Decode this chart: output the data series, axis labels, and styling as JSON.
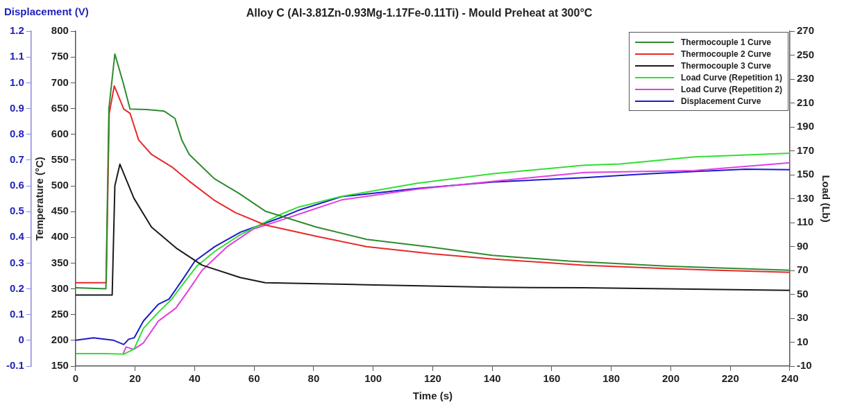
{
  "chart_data": {
    "type": "line",
    "title": "Alloy C (Al-3.81Zn-0.93Mg-1.17Fe-0.11Ti) - Mould Preheat at 300°C",
    "xlabel": "Time (s)",
    "ylabel": "Temperature (°C)",
    "y2label": "Load (Lb)",
    "y3label": "Displacement (V)",
    "xlim": [
      0,
      240
    ],
    "xticks": [
      0,
      20,
      40,
      60,
      80,
      100,
      120,
      140,
      160,
      180,
      200,
      220,
      240
    ],
    "ylim": [
      150,
      800
    ],
    "yticks": [
      150,
      200,
      250,
      300,
      350,
      400,
      450,
      500,
      550,
      600,
      650,
      700,
      750,
      800
    ],
    "y2lim": [
      -10,
      270
    ],
    "y2ticks": [
      -10,
      10,
      30,
      50,
      70,
      90,
      110,
      130,
      150,
      170,
      190,
      210,
      230,
      250,
      270
    ],
    "y3lim": [
      -0.1,
      1.2
    ],
    "y3ticks": [
      -0.1,
      0,
      0.1,
      0.2,
      0.3,
      0.4,
      0.5,
      0.6,
      0.7,
      0.8,
      0.9,
      {
        "value": 1,
        "label": "1.0"
      },
      1.1,
      1.2
    ],
    "grid": false,
    "legend": "top right",
    "marker": "none",
    "line_style": "solid",
    "series": [
      {
        "name": "Thermocouple 1 Curve",
        "color": "#2e8b2e",
        "x": [
          0,
          10.2,
          11.2,
          13.2,
          16,
          18.3,
          24,
          29.8,
          33.4,
          35.7,
          38.2,
          46.6,
          55,
          63.7,
          80.9,
          97.8,
          119.7,
          140,
          165.6,
          199.5,
          240
        ],
        "values": [
          302,
          300,
          650,
          756,
          700,
          649,
          648,
          645,
          631,
          589,
          561,
          514,
          485,
          451,
          420,
          396,
          381,
          365,
          354,
          344,
          336
        ]
      },
      {
        "name": "Thermocouple 2 Curve",
        "color": "#e8282a",
        "x": [
          0,
          10.3,
          11.3,
          13,
          16.2,
          18.3,
          21.2,
          25.5,
          32.3,
          38.2,
          46.6,
          53.7,
          63.7,
          80.9,
          97.8,
          119.7,
          140,
          170.6,
          199.5,
          240
        ],
        "values": [
          312,
          312,
          640,
          694,
          649,
          641,
          589,
          561,
          537,
          509,
          472,
          448,
          424,
          402,
          382,
          368,
          358,
          346,
          339,
          332
        ]
      },
      {
        "name": "Thermocouple 3 Curve",
        "color": "#1a1a1a",
        "x": [
          0,
          12.3,
          13.2,
          14.9,
          19.6,
          25.5,
          34.1,
          42.5,
          55.3,
          63.7,
          97.8,
          140,
          170.6,
          240
        ],
        "values": [
          288,
          288,
          500,
          542,
          476,
          420,
          378,
          346,
          322,
          312,
          308,
          303,
          302,
          297
        ]
      },
      {
        "name": "Load Curve (Repetition 1)",
        "color": "#33dd33",
        "axis": "y2",
        "x": [
          0,
          10,
          16.2,
          17.8,
          19.7,
          22.8,
          27.8,
          32.3,
          36.5,
          40.9,
          46.8,
          55.4,
          69,
          74.9,
          89.4,
          114.9,
          140.4,
          171,
          183,
          208,
          240
        ],
        "values": [
          0.5,
          0.5,
          0,
          2,
          4.5,
          21.5,
          35,
          46,
          60,
          74,
          86,
          100,
          117,
          123,
          132,
          143,
          151,
          158,
          159,
          165,
          168
        ]
      },
      {
        "name": "Load Curve (Repetition 2)",
        "color": "#e040e0",
        "axis": "y2",
        "x": [
          16,
          17,
          19.5,
          22.8,
          27.8,
          33.7,
          38,
          42.5,
          51,
          59.6,
          69,
          76.7,
          89.4,
          114.9,
          140.4,
          171,
          208,
          240
        ],
        "values": [
          0.5,
          6,
          4,
          9.4,
          27.6,
          38.5,
          53.6,
          70,
          90,
          104.5,
          112,
          118.5,
          129,
          138,
          144.5,
          152,
          153.6,
          160
        ]
      },
      {
        "name": "Displacement Curve",
        "color": "#1a1acc",
        "axis": "y3",
        "x": [
          0,
          6,
          12.8,
          16.2,
          17.8,
          19.7,
          22.8,
          27.8,
          31.4,
          35.9,
          40.1,
          46.8,
          55.4,
          69,
          74.9,
          89.4,
          114.9,
          140.4,
          171,
          191,
          225,
          240
        ],
        "values": [
          0,
          0.01,
          0,
          -0.016,
          0.004,
          0.01,
          0.075,
          0.14,
          0.16,
          0.235,
          0.308,
          0.364,
          0.42,
          0.477,
          0.505,
          0.558,
          0.59,
          0.615,
          0.632,
          0.646,
          0.665,
          0.663
        ]
      }
    ]
  }
}
